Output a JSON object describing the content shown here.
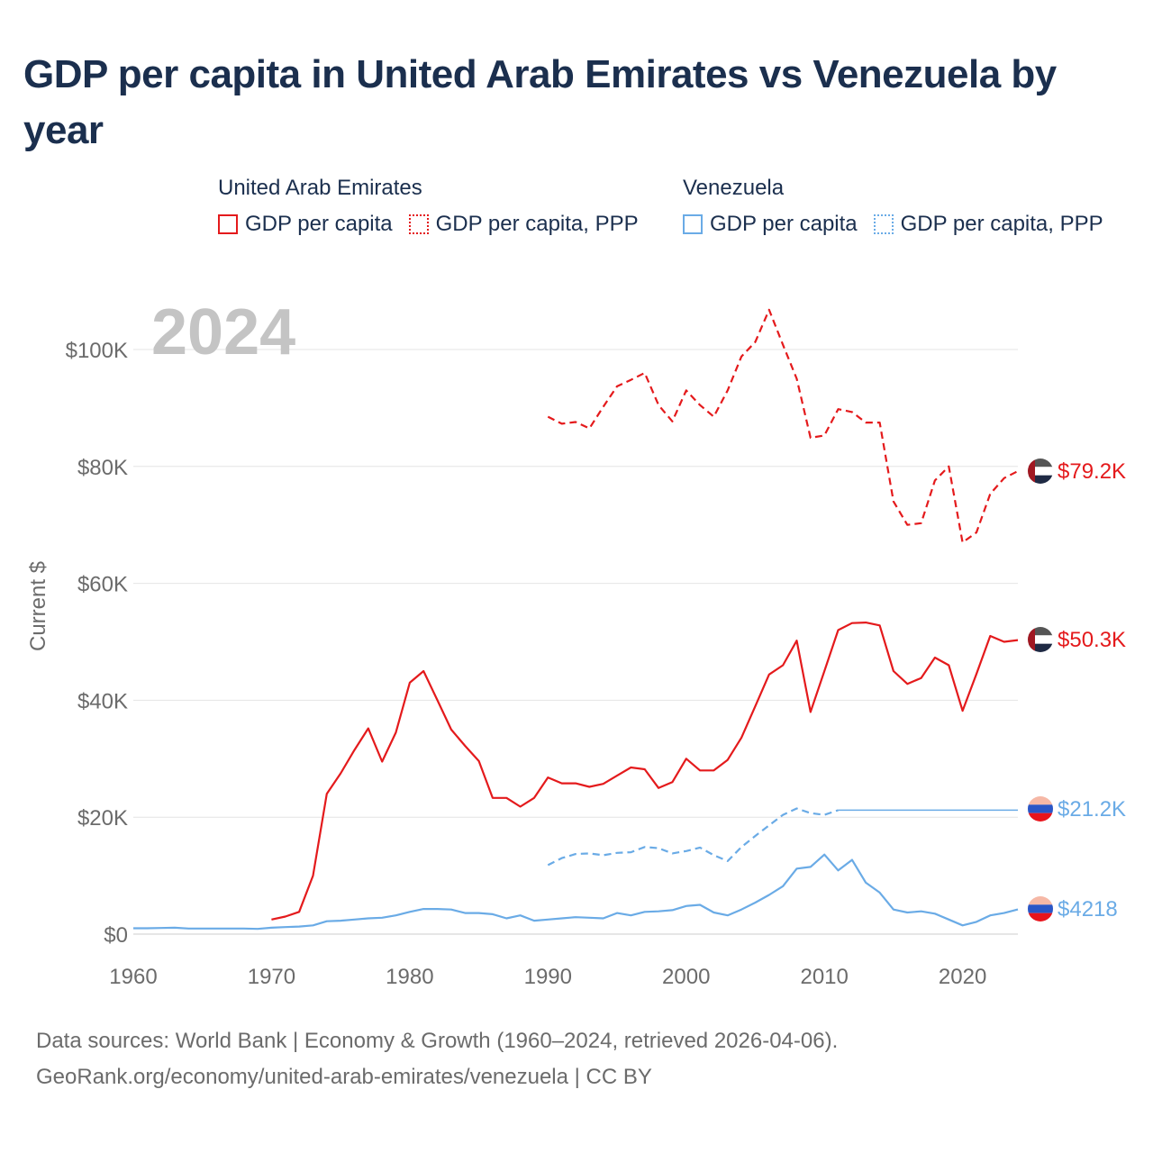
{
  "title": "GDP per capita in United Arab Emirates vs Venezuela by year",
  "legend": {
    "uae_group": "United Arab Emirates",
    "ven_group": "Venezuela",
    "gdp_label": "GDP per capita",
    "ppp_label": "GDP per capita, PPP"
  },
  "colors": {
    "uae": "#e41a1c",
    "ven": "#6aabe6",
    "grid": "#e4e4e4",
    "year": "#c4c4c4"
  },
  "source": {
    "line1": "Data sources: World Bank | Economy & Growth (1960–2024, retrieved 2026-04-06).",
    "line2": "GeoRank.org/economy/united-arab-emirates/venezuela | CC BY"
  },
  "chart_data": {
    "type": "line",
    "title": "GDP per capita in United Arab Emirates vs Venezuela by year",
    "ylabel": "Current $",
    "xlim": [
      1960,
      2024
    ],
    "ylim": [
      0,
      110000
    ],
    "x_ticks": [
      1960,
      1970,
      1980,
      1990,
      2000,
      2010,
      2020
    ],
    "x_tick_labels": [
      "1960",
      "1970",
      "1980",
      "1990",
      "2000",
      "2010",
      "2020"
    ],
    "y_ticks": [
      0,
      20000,
      40000,
      60000,
      80000,
      100000
    ],
    "y_tick_labels": [
      "$0",
      "$20K",
      "$40K",
      "$60K",
      "$80K",
      "$100K"
    ],
    "year_label": "2024",
    "series": [
      {
        "name": "United Arab Emirates – GDP per capita",
        "color": "#e41a1c",
        "dash": false,
        "end_label": "$50.3K",
        "x": [
          1970,
          1971,
          1972,
          1973,
          1974,
          1975,
          1976,
          1977,
          1978,
          1979,
          1980,
          1981,
          1982,
          1983,
          1984,
          1985,
          1986,
          1987,
          1988,
          1989,
          1990,
          1991,
          1992,
          1993,
          1994,
          1995,
          1996,
          1997,
          1998,
          1999,
          2000,
          2001,
          2002,
          2003,
          2004,
          2005,
          2006,
          2007,
          2008,
          2009,
          2010,
          2011,
          2012,
          2013,
          2014,
          2015,
          2016,
          2017,
          2018,
          2019,
          2020,
          2021,
          2022,
          2023,
          2024
        ],
        "y": [
          2500,
          3000,
          3800,
          10000,
          24000,
          27500,
          31500,
          35200,
          29500,
          34500,
          43000,
          45000,
          40000,
          35000,
          32200,
          29600,
          23300,
          23300,
          21800,
          23300,
          26800,
          25800,
          25800,
          25200,
          25700,
          27100,
          28500,
          28200,
          25000,
          26000,
          30000,
          28000,
          28000,
          29800,
          33600,
          39000,
          44400,
          46000,
          50200,
          38000,
          45000,
          52000,
          53200,
          53300,
          52800,
          45000,
          42800,
          43800,
          47300,
          46000,
          38200,
          44500,
          51000,
          50000,
          50300
        ]
      },
      {
        "name": "United Arab Emirates – GDP per capita, PPP",
        "color": "#e41a1c",
        "dash": true,
        "end_label": "$79.2K",
        "x": [
          1990,
          1991,
          1992,
          1993,
          1994,
          1995,
          1996,
          1997,
          1998,
          1999,
          2000,
          2001,
          2002,
          2003,
          2004,
          2005,
          2006,
          2007,
          2008,
          2009,
          2010,
          2011,
          2012,
          2013,
          2014,
          2015,
          2016,
          2017,
          2018,
          2019,
          2020,
          2021,
          2022,
          2023,
          2024
        ],
        "y": [
          88500,
          87300,
          87600,
          86500,
          90200,
          93700,
          94800,
          96000,
          90500,
          87700,
          93000,
          90500,
          88500,
          93000,
          98800,
          101300,
          106800,
          100800,
          95000,
          84900,
          85300,
          89800,
          89300,
          87500,
          87500,
          74000,
          70000,
          70300,
          77600,
          80000,
          67000,
          68700,
          75300,
          78000,
          79200
        ]
      },
      {
        "name": "Venezuela – GDP per capita",
        "color": "#6aabe6",
        "dash": false,
        "end_label": "$4218",
        "x": [
          1960,
          1961,
          1962,
          1963,
          1964,
          1965,
          1966,
          1967,
          1968,
          1969,
          1970,
          1971,
          1972,
          1973,
          1974,
          1975,
          1976,
          1977,
          1978,
          1979,
          1980,
          1981,
          1982,
          1983,
          1984,
          1985,
          1986,
          1987,
          1988,
          1989,
          1990,
          1991,
          1992,
          1993,
          1994,
          1995,
          1996,
          1997,
          1998,
          1999,
          2000,
          2001,
          2002,
          2003,
          2004,
          2005,
          2006,
          2007,
          2008,
          2009,
          2010,
          2011,
          2012,
          2013,
          2014,
          2015,
          2016,
          2017,
          2018,
          2019,
          2020,
          2021,
          2022,
          2023,
          2024
        ],
        "y": [
          1000,
          1000,
          1050,
          1100,
          950,
          950,
          950,
          950,
          950,
          900,
          1100,
          1200,
          1300,
          1500,
          2200,
          2300,
          2500,
          2700,
          2800,
          3200,
          3800,
          4300,
          4300,
          4200,
          3600,
          3600,
          3400,
          2700,
          3200,
          2300,
          2500,
          2700,
          2900,
          2800,
          2700,
          3600,
          3200,
          3800,
          3900,
          4100,
          4800,
          5000,
          3700,
          3200,
          4200,
          5400,
          6700,
          8200,
          11200,
          11500,
          13600,
          10900,
          12700,
          8800,
          7100,
          4200,
          3700,
          3900,
          3500,
          2500,
          1500,
          2100,
          3200,
          3600,
          4218
        ]
      },
      {
        "name": "Venezuela – GDP per capita, PPP",
        "color": "#6aabe6",
        "dash": true,
        "end_label": "$21.2K",
        "x": [
          1990,
          1991,
          1992,
          1993,
          1994,
          1995,
          1996,
          1997,
          1998,
          1999,
          2000,
          2001,
          2002,
          2003,
          2004,
          2005,
          2006,
          2007,
          2008,
          2009,
          2010,
          2011
        ],
        "y": [
          11800,
          13000,
          13700,
          13800,
          13500,
          13900,
          14000,
          14900,
          14700,
          13800,
          14200,
          14800,
          13500,
          12500,
          14900,
          16800,
          18600,
          20400,
          21500,
          20700,
          20400,
          21200
        ]
      },
      {
        "name": "Venezuela – GDP per capita, PPP (carried forward)",
        "color": "#6aabe6",
        "dash": false,
        "thin": true,
        "x": [
          2011,
          2024
        ],
        "y": [
          21200,
          21200
        ]
      }
    ]
  }
}
